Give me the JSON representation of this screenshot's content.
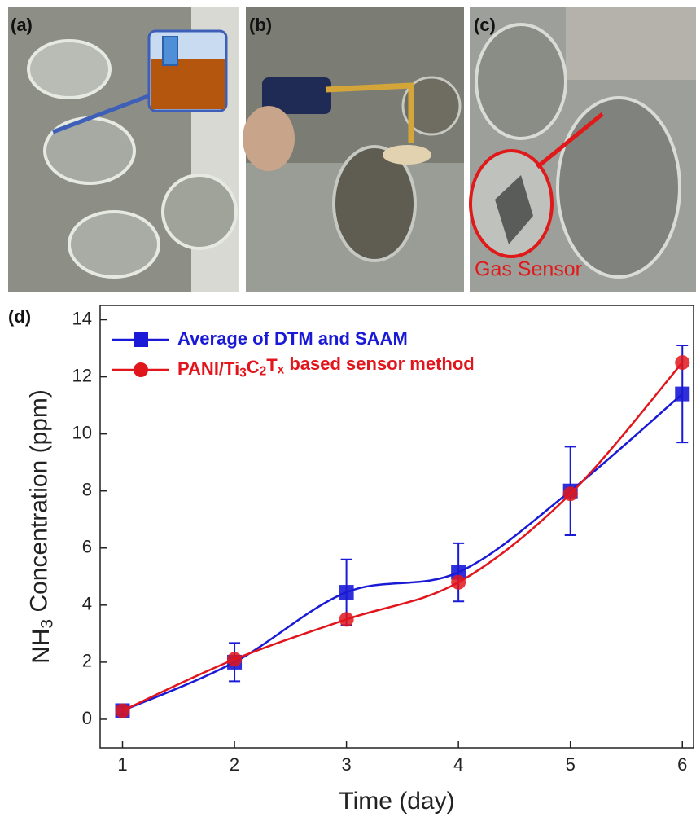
{
  "panels": {
    "a": "(a)",
    "b": "(b)",
    "c": "(c)",
    "d": "(d)",
    "sensor_label": "Gas Sensor"
  },
  "chart_data": {
    "type": "line",
    "x": [
      1,
      2,
      3,
      4,
      5,
      6
    ],
    "xlabel": "Time (day)",
    "ylabel": "NH3 Concentration (ppm)",
    "xlim": [
      0.8,
      6.1
    ],
    "xticks": [
      1,
      2,
      3,
      4,
      5,
      6
    ],
    "ylim": [
      -1,
      14.5
    ],
    "yticks": [
      0,
      2,
      4,
      6,
      8,
      10,
      12,
      14
    ],
    "legend": "upper left",
    "series": [
      {
        "name": "Average of DTM and SAAM",
        "color": "#1a1ad6",
        "marker": "square",
        "values": [
          0.3,
          2.0,
          4.45,
          5.15,
          8.0,
          11.4
        ],
        "errors": [
          0.15,
          0.67,
          1.15,
          1.02,
          1.55,
          1.7
        ]
      },
      {
        "name": "PANI/Ti3C2Tx based sensor method",
        "color": "#e0161c",
        "marker": "circle",
        "values": [
          0.3,
          2.1,
          3.5,
          4.8,
          7.9,
          12.5
        ]
      }
    ]
  }
}
